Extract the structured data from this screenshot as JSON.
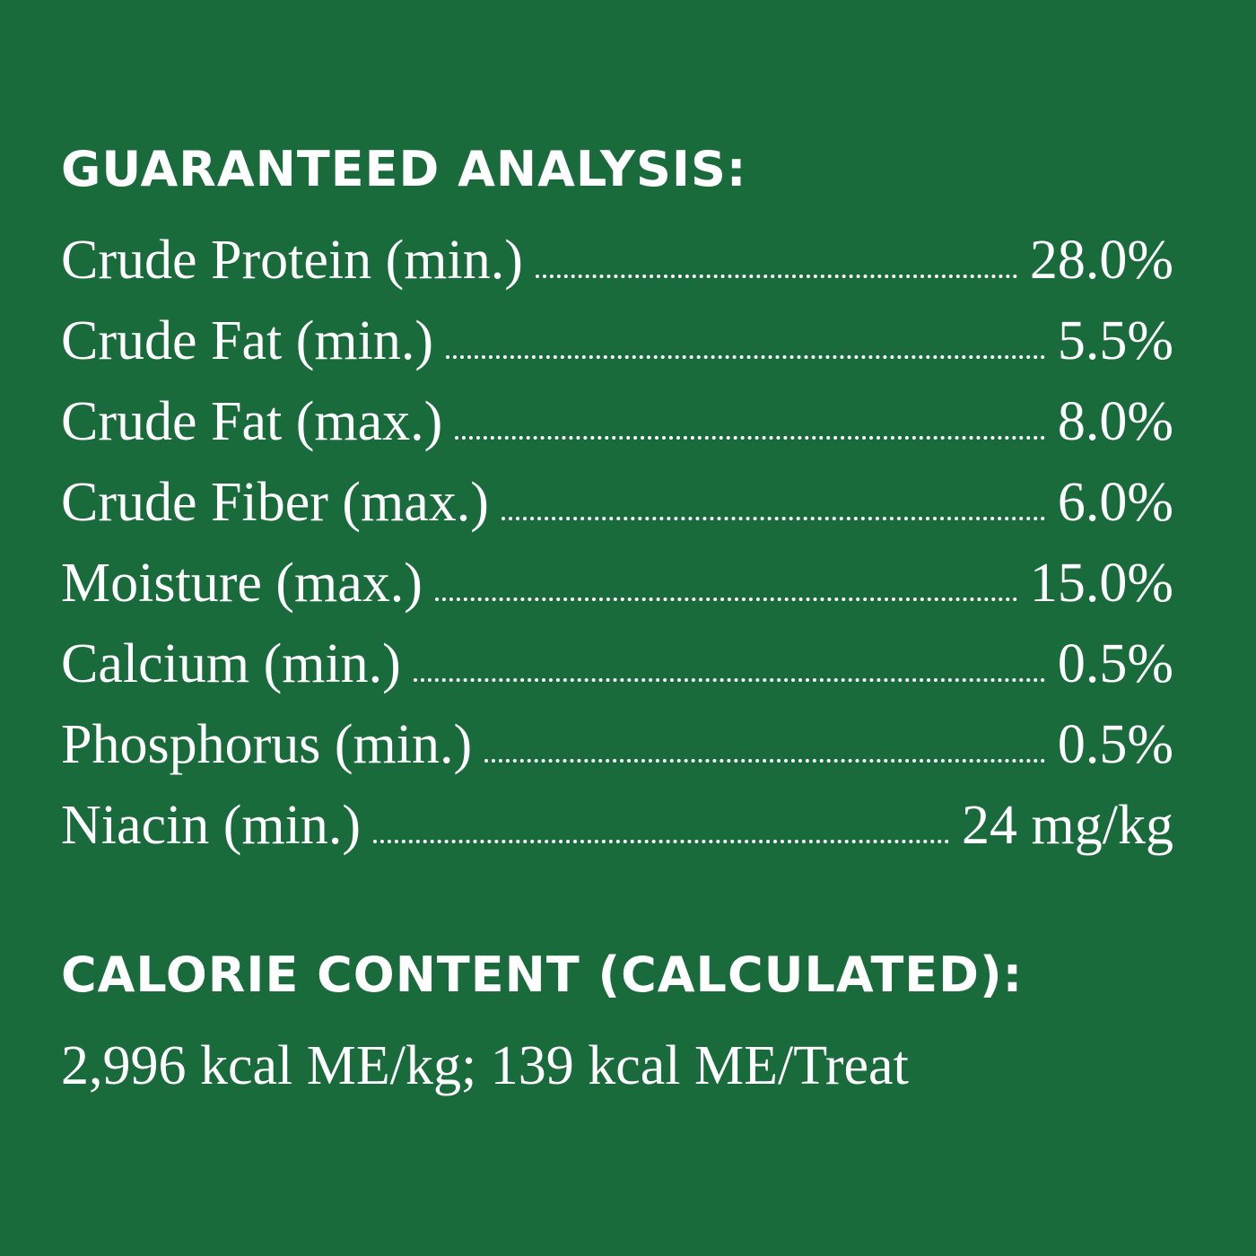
{
  "background_color": "#196b3c",
  "text_color": "#ffffff",
  "guaranteed_analysis": {
    "title": "GUARANTEED ANALYSIS:",
    "rows": [
      {
        "label": "Crude Protein (min.)",
        "value": "28.0%"
      },
      {
        "label": "Crude Fat (min.)",
        "value": "5.5%"
      },
      {
        "label": "Crude Fat (max.)",
        "value": "8.0%"
      },
      {
        "label": "Crude Fiber (max.)",
        "value": "6.0%"
      },
      {
        "label": "Moisture (max.)",
        "value": "15.0%"
      },
      {
        "label": "Calcium (min.)",
        "value": "0.5%"
      },
      {
        "label": "Phosphorus (min.)",
        "value": "0.5%"
      },
      {
        "label": "Niacin (min.)",
        "value": "24 mg/kg"
      }
    ]
  },
  "calorie_content": {
    "title": "CALORIE CONTENT (CALCULATED):",
    "text": "2,996 kcal ME/kg; 139 kcal ME/Treat"
  }
}
